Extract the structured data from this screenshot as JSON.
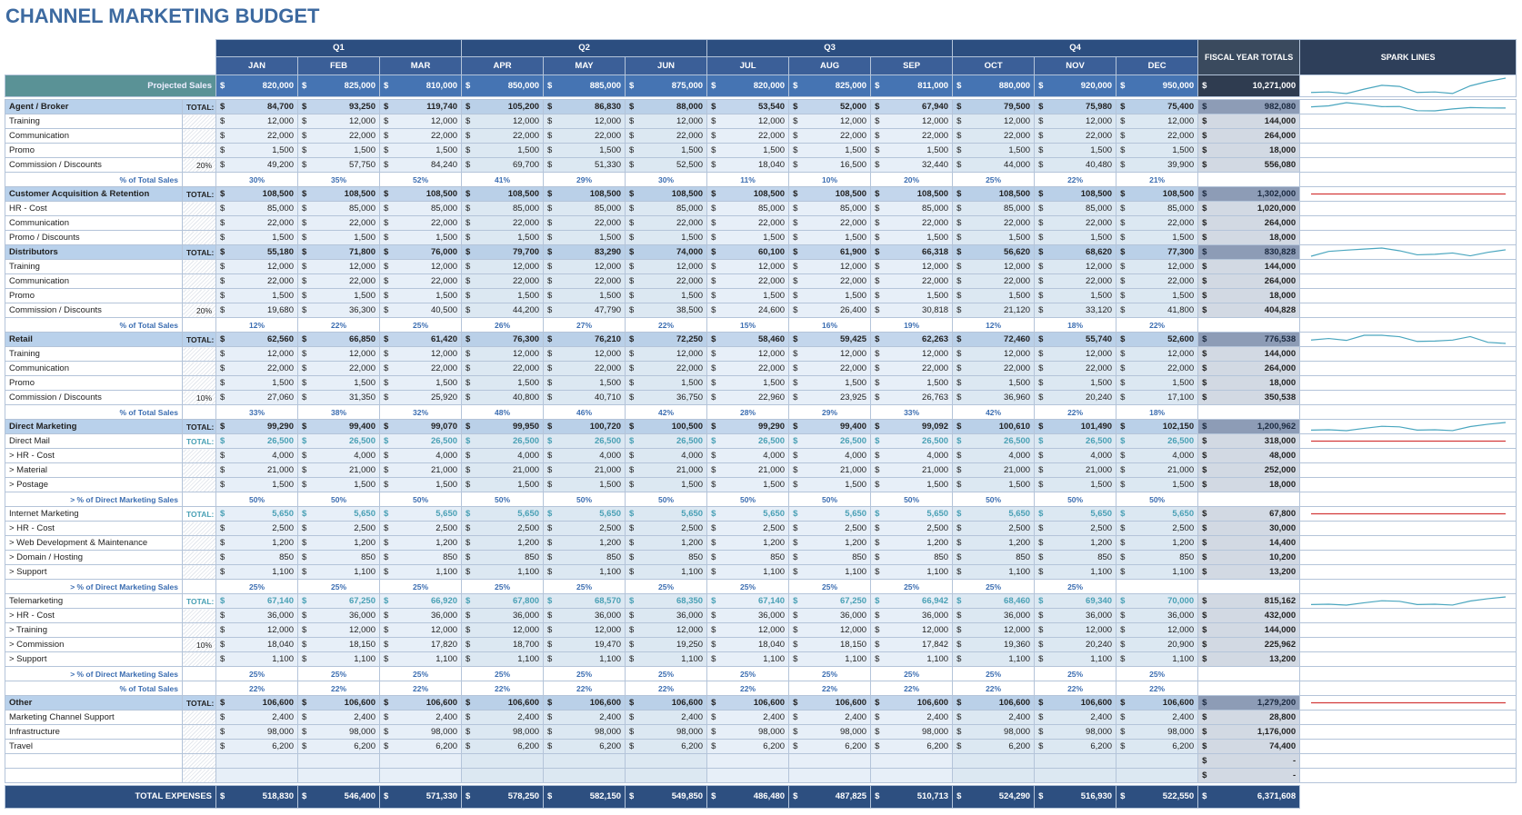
{
  "title": "CHANNEL MARKETING BUDGET",
  "currency": "$",
  "spark_color": "#4aa6bf",
  "header": {
    "quarters": [
      "Q1",
      "Q2",
      "Q3",
      "Q4"
    ],
    "months": [
      "JAN",
      "FEB",
      "MAR",
      "APR",
      "MAY",
      "JUN",
      "JUL",
      "AUG",
      "SEP",
      "OCT",
      "NOV",
      "DEC"
    ],
    "totals": "FISCAL YEAR TOTALS",
    "spark": "SPARK LINES"
  },
  "rows": [
    {
      "kind": "projected",
      "label": "Projected Sales",
      "values": [
        "820,000",
        "825,000",
        "810,000",
        "850,000",
        "885,000",
        "875,000",
        "820,000",
        "825,000",
        "811,000",
        "880,000",
        "920,000",
        "950,000"
      ],
      "total": "10,271,000",
      "spark": true
    },
    {
      "kind": "section",
      "label": "Agent / Broker",
      "tag": "TOTAL:",
      "values": [
        "84,700",
        "93,250",
        "119,740",
        "105,200",
        "86,830",
        "88,000",
        "53,540",
        "52,000",
        "67,940",
        "79,500",
        "75,980",
        "75,400"
      ],
      "total": "982,080",
      "spark": true
    },
    {
      "kind": "item",
      "label": "Training",
      "values": [
        "12,000",
        "12,000",
        "12,000",
        "12,000",
        "12,000",
        "12,000",
        "12,000",
        "12,000",
        "12,000",
        "12,000",
        "12,000",
        "12,000"
      ],
      "total": "144,000"
    },
    {
      "kind": "item",
      "label": "Communication",
      "values": [
        "22,000",
        "22,000",
        "22,000",
        "22,000",
        "22,000",
        "22,000",
        "22,000",
        "22,000",
        "22,000",
        "22,000",
        "22,000",
        "22,000"
      ],
      "total": "264,000"
    },
    {
      "kind": "item",
      "label": "Promo",
      "values": [
        "1,500",
        "1,500",
        "1,500",
        "1,500",
        "1,500",
        "1,500",
        "1,500",
        "1,500",
        "1,500",
        "1,500",
        "1,500",
        "1,500"
      ],
      "total": "18,000"
    },
    {
      "kind": "item",
      "label": "Commission / Discounts",
      "tag": "20%",
      "values": [
        "49,200",
        "57,750",
        "84,240",
        "69,700",
        "51,330",
        "52,500",
        "18,040",
        "16,500",
        "32,440",
        "44,000",
        "40,480",
        "39,900"
      ],
      "total": "556,080"
    },
    {
      "kind": "pct",
      "label": "% of Total Sales",
      "values": [
        "30%",
        "35%",
        "52%",
        "41%",
        "29%",
        "30%",
        "11%",
        "10%",
        "20%",
        "25%",
        "22%",
        "21%"
      ]
    },
    {
      "kind": "section",
      "label": "Customer Acquisition & Retention",
      "tag": "TOTAL:",
      "values": [
        "108,500",
        "108,500",
        "108,500",
        "108,500",
        "108,500",
        "108,500",
        "108,500",
        "108,500",
        "108,500",
        "108,500",
        "108,500",
        "108,500"
      ],
      "total": "1,302,000",
      "spark": true
    },
    {
      "kind": "item",
      "label": "HR - Cost",
      "values": [
        "85,000",
        "85,000",
        "85,000",
        "85,000",
        "85,000",
        "85,000",
        "85,000",
        "85,000",
        "85,000",
        "85,000",
        "85,000",
        "85,000"
      ],
      "total": "1,020,000"
    },
    {
      "kind": "item",
      "label": "Communication",
      "values": [
        "22,000",
        "22,000",
        "22,000",
        "22,000",
        "22,000",
        "22,000",
        "22,000",
        "22,000",
        "22,000",
        "22,000",
        "22,000",
        "22,000"
      ],
      "total": "264,000"
    },
    {
      "kind": "item",
      "label": "Promo / Discounts",
      "values": [
        "1,500",
        "1,500",
        "1,500",
        "1,500",
        "1,500",
        "1,500",
        "1,500",
        "1,500",
        "1,500",
        "1,500",
        "1,500",
        "1,500"
      ],
      "total": "18,000"
    },
    {
      "kind": "section",
      "label": "Distributors",
      "tag": "TOTAL:",
      "values": [
        "55,180",
        "71,800",
        "76,000",
        "79,700",
        "83,290",
        "74,000",
        "60,100",
        "61,900",
        "66,318",
        "56,620",
        "68,620",
        "77,300"
      ],
      "total": "830,828",
      "spark": true
    },
    {
      "kind": "item",
      "label": "Training",
      "values": [
        "12,000",
        "12,000",
        "12,000",
        "12,000",
        "12,000",
        "12,000",
        "12,000",
        "12,000",
        "12,000",
        "12,000",
        "12,000",
        "12,000"
      ],
      "total": "144,000"
    },
    {
      "kind": "item",
      "label": "Communication",
      "values": [
        "22,000",
        "22,000",
        "22,000",
        "22,000",
        "22,000",
        "22,000",
        "22,000",
        "22,000",
        "22,000",
        "22,000",
        "22,000",
        "22,000"
      ],
      "total": "264,000"
    },
    {
      "kind": "item",
      "label": "Promo",
      "values": [
        "1,500",
        "1,500",
        "1,500",
        "1,500",
        "1,500",
        "1,500",
        "1,500",
        "1,500",
        "1,500",
        "1,500",
        "1,500",
        "1,500"
      ],
      "total": "18,000"
    },
    {
      "kind": "item",
      "label": "Commission / Discounts",
      "tag": "20%",
      "values": [
        "19,680",
        "36,300",
        "40,500",
        "44,200",
        "47,790",
        "38,500",
        "24,600",
        "26,400",
        "30,818",
        "21,120",
        "33,120",
        "41,800"
      ],
      "total": "404,828"
    },
    {
      "kind": "pct",
      "label": "% of Total Sales",
      "values": [
        "12%",
        "22%",
        "25%",
        "26%",
        "27%",
        "22%",
        "15%",
        "16%",
        "19%",
        "12%",
        "18%",
        "22%"
      ]
    },
    {
      "kind": "section",
      "label": "Retail",
      "tag": "TOTAL:",
      "values": [
        "62,560",
        "66,850",
        "61,420",
        "76,300",
        "76,210",
        "72,250",
        "58,460",
        "59,425",
        "62,263",
        "72,460",
        "55,740",
        "52,600"
      ],
      "total": "776,538",
      "spark": true
    },
    {
      "kind": "item",
      "label": "Training",
      "values": [
        "12,000",
        "12,000",
        "12,000",
        "12,000",
        "12,000",
        "12,000",
        "12,000",
        "12,000",
        "12,000",
        "12,000",
        "12,000",
        "12,000"
      ],
      "total": "144,000"
    },
    {
      "kind": "item",
      "label": "Communication",
      "values": [
        "22,000",
        "22,000",
        "22,000",
        "22,000",
        "22,000",
        "22,000",
        "22,000",
        "22,000",
        "22,000",
        "22,000",
        "22,000",
        "22,000"
      ],
      "total": "264,000"
    },
    {
      "kind": "item",
      "label": "Promo",
      "values": [
        "1,500",
        "1,500",
        "1,500",
        "1,500",
        "1,500",
        "1,500",
        "1,500",
        "1,500",
        "1,500",
        "1,500",
        "1,500",
        "1,500"
      ],
      "total": "18,000"
    },
    {
      "kind": "item",
      "label": "Commission / Discounts",
      "tag": "10%",
      "values": [
        "27,060",
        "31,350",
        "25,920",
        "40,800",
        "40,710",
        "36,750",
        "22,960",
        "23,925",
        "26,763",
        "36,960",
        "20,240",
        "17,100"
      ],
      "total": "350,538"
    },
    {
      "kind": "pct",
      "label": "% of Total Sales",
      "values": [
        "33%",
        "38%",
        "32%",
        "48%",
        "46%",
        "42%",
        "28%",
        "29%",
        "33%",
        "42%",
        "22%",
        "18%"
      ]
    },
    {
      "kind": "section",
      "label": "Direct Marketing",
      "tag": "TOTAL:",
      "values": [
        "99,290",
        "99,400",
        "99,070",
        "99,950",
        "100,720",
        "100,500",
        "99,290",
        "99,400",
        "99,092",
        "100,610",
        "101,490",
        "102,150"
      ],
      "total": "1,200,962",
      "spark": true
    },
    {
      "kind": "sub",
      "label": "Direct Mail",
      "tag": "TOTAL:",
      "values": [
        "26,500",
        "26,500",
        "26,500",
        "26,500",
        "26,500",
        "26,500",
        "26,500",
        "26,500",
        "26,500",
        "26,500",
        "26,500",
        "26,500"
      ],
      "total": "318,000",
      "spark": true
    },
    {
      "kind": "item",
      "label": "> HR - Cost",
      "values": [
        "4,000",
        "4,000",
        "4,000",
        "4,000",
        "4,000",
        "4,000",
        "4,000",
        "4,000",
        "4,000",
        "4,000",
        "4,000",
        "4,000"
      ],
      "total": "48,000"
    },
    {
      "kind": "item",
      "label": "> Material",
      "values": [
        "21,000",
        "21,000",
        "21,000",
        "21,000",
        "21,000",
        "21,000",
        "21,000",
        "21,000",
        "21,000",
        "21,000",
        "21,000",
        "21,000"
      ],
      "total": "252,000"
    },
    {
      "kind": "item",
      "label": "> Postage",
      "values": [
        "1,500",
        "1,500",
        "1,500",
        "1,500",
        "1,500",
        "1,500",
        "1,500",
        "1,500",
        "1,500",
        "1,500",
        "1,500",
        "1,500"
      ],
      "total": "18,000"
    },
    {
      "kind": "pct",
      "label": "> % of Direct Marketing Sales",
      "values": [
        "50%",
        "50%",
        "50%",
        "50%",
        "50%",
        "50%",
        "50%",
        "50%",
        "50%",
        "50%",
        "50%",
        "50%"
      ]
    },
    {
      "kind": "sub",
      "label": "Internet Marketing",
      "tag": "TOTAL:",
      "values": [
        "5,650",
        "5,650",
        "5,650",
        "5,650",
        "5,650",
        "5,650",
        "5,650",
        "5,650",
        "5,650",
        "5,650",
        "5,650",
        "5,650"
      ],
      "total": "67,800",
      "spark": true
    },
    {
      "kind": "item",
      "label": "> HR - Cost",
      "values": [
        "2,500",
        "2,500",
        "2,500",
        "2,500",
        "2,500",
        "2,500",
        "2,500",
        "2,500",
        "2,500",
        "2,500",
        "2,500",
        "2,500"
      ],
      "total": "30,000"
    },
    {
      "kind": "item",
      "label": "> Web Development & Maintenance",
      "values": [
        "1,200",
        "1,200",
        "1,200",
        "1,200",
        "1,200",
        "1,200",
        "1,200",
        "1,200",
        "1,200",
        "1,200",
        "1,200",
        "1,200"
      ],
      "total": "14,400"
    },
    {
      "kind": "item",
      "label": "> Domain / Hosting",
      "values": [
        "850",
        "850",
        "850",
        "850",
        "850",
        "850",
        "850",
        "850",
        "850",
        "850",
        "850",
        "850"
      ],
      "total": "10,200"
    },
    {
      "kind": "item",
      "label": "> Support",
      "values": [
        "1,100",
        "1,100",
        "1,100",
        "1,100",
        "1,100",
        "1,100",
        "1,100",
        "1,100",
        "1,100",
        "1,100",
        "1,100",
        "1,100"
      ],
      "total": "13,200"
    },
    {
      "kind": "pct",
      "label": "> % of Direct Marketing Sales",
      "values": [
        "25%",
        "25%",
        "25%",
        "25%",
        "25%",
        "25%",
        "25%",
        "25%",
        "25%",
        "25%",
        "25%",
        null
      ]
    },
    {
      "kind": "sub",
      "label": "Telemarketing",
      "tag": "TOTAL:",
      "values": [
        "67,140",
        "67,250",
        "66,920",
        "67,800",
        "68,570",
        "68,350",
        "67,140",
        "67,250",
        "66,942",
        "68,460",
        "69,340",
        "70,000"
      ],
      "total": "815,162",
      "spark": true
    },
    {
      "kind": "item",
      "label": "> HR - Cost",
      "values": [
        "36,000",
        "36,000",
        "36,000",
        "36,000",
        "36,000",
        "36,000",
        "36,000",
        "36,000",
        "36,000",
        "36,000",
        "36,000",
        "36,000"
      ],
      "total": "432,000"
    },
    {
      "kind": "item",
      "label": "> Training",
      "values": [
        "12,000",
        "12,000",
        "12,000",
        "12,000",
        "12,000",
        "12,000",
        "12,000",
        "12,000",
        "12,000",
        "12,000",
        "12,000",
        "12,000"
      ],
      "total": "144,000"
    },
    {
      "kind": "item",
      "label": "> Commission",
      "tag": "10%",
      "values": [
        "18,040",
        "18,150",
        "17,820",
        "18,700",
        "19,470",
        "19,250",
        "18,040",
        "18,150",
        "17,842",
        "19,360",
        "20,240",
        "20,900"
      ],
      "total": "225,962"
    },
    {
      "kind": "item",
      "label": "> Support",
      "values": [
        "1,100",
        "1,100",
        "1,100",
        "1,100",
        "1,100",
        "1,100",
        "1,100",
        "1,100",
        "1,100",
        "1,100",
        "1,100",
        "1,100"
      ],
      "total": "13,200"
    },
    {
      "kind": "pct",
      "label": "> % of Direct Marketing Sales",
      "values": [
        "25%",
        "25%",
        "25%",
        "25%",
        "25%",
        "25%",
        "25%",
        "25%",
        "25%",
        "25%",
        "25%",
        "25%"
      ]
    },
    {
      "kind": "pct",
      "label": "% of Total Sales",
      "values": [
        "22%",
        "22%",
        "22%",
        "22%",
        "22%",
        "22%",
        "22%",
        "22%",
        "22%",
        "22%",
        "22%",
        "22%"
      ]
    },
    {
      "kind": "section",
      "label": "Other",
      "tag": "TOTAL:",
      "values": [
        "106,600",
        "106,600",
        "106,600",
        "106,600",
        "106,600",
        "106,600",
        "106,600",
        "106,600",
        "106,600",
        "106,600",
        "106,600",
        "106,600"
      ],
      "total": "1,279,200",
      "spark": true
    },
    {
      "kind": "item",
      "label": "Marketing Channel Support",
      "values": [
        "2,400",
        "2,400",
        "2,400",
        "2,400",
        "2,400",
        "2,400",
        "2,400",
        "2,400",
        "2,400",
        "2,400",
        "2,400",
        "2,400"
      ],
      "total": "28,800"
    },
    {
      "kind": "item",
      "label": "Infrastructure",
      "values": [
        "98,000",
        "98,000",
        "98,000",
        "98,000",
        "98,000",
        "98,000",
        "98,000",
        "98,000",
        "98,000",
        "98,000",
        "98,000",
        "98,000"
      ],
      "total": "1,176,000"
    },
    {
      "kind": "item",
      "label": "Travel",
      "values": [
        "6,200",
        "6,200",
        "6,200",
        "6,200",
        "6,200",
        "6,200",
        "6,200",
        "6,200",
        "6,200",
        "6,200",
        "6,200",
        "6,200"
      ],
      "total": "74,400"
    },
    {
      "kind": "item",
      "label": null,
      "values": [
        null,
        null,
        null,
        null,
        null,
        null,
        null,
        null,
        null,
        null,
        null,
        null
      ],
      "total": "-"
    },
    {
      "kind": "item",
      "label": null,
      "values": [
        null,
        null,
        null,
        null,
        null,
        null,
        null,
        null,
        null,
        null,
        null,
        null
      ],
      "total": "-"
    },
    {
      "kind": "grand",
      "label": "TOTAL EXPENSES",
      "values": [
        "518,830",
        "546,400",
        "571,330",
        "578,250",
        "582,150",
        "549,850",
        "486,480",
        "487,825",
        "510,713",
        "524,290",
        "516,930",
        "522,550"
      ],
      "total": "6,371,608"
    }
  ]
}
